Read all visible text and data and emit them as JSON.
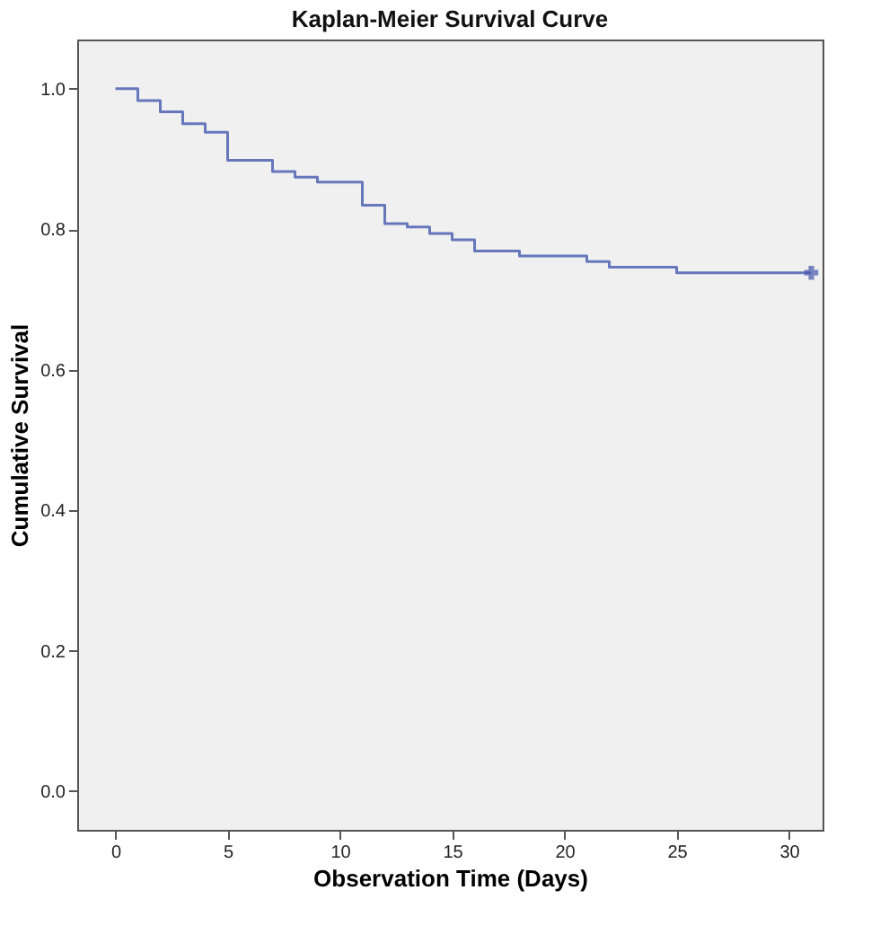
{
  "chart_data": {
    "type": "step",
    "title": "Kaplan-Meier Survival Curve",
    "xlabel": "Observation Time (Days)",
    "ylabel": "Cumulative Survival",
    "xlim": [
      -1.7,
      31.5
    ],
    "xticks": [
      0,
      5,
      10,
      15,
      20,
      25,
      30
    ],
    "ylim": [
      -0.055,
      1.07
    ],
    "yticks": [
      {
        "value": 0,
        "label": "0.0"
      },
      {
        "value": 0.2,
        "label": "0.2"
      },
      {
        "value": 0.4,
        "label": "0.4"
      },
      {
        "value": 0.6,
        "label": "0.6"
      },
      {
        "value": 0.8,
        "label": "0.8"
      },
      {
        "value": 1,
        "label": "1.0"
      }
    ],
    "grid": false,
    "line_style": "solid",
    "series": [
      {
        "color": "#6677bb",
        "x": [
          0,
          1,
          2,
          3,
          4,
          5,
          7,
          8,
          9,
          11,
          12,
          13,
          14,
          15,
          16,
          18,
          21,
          22,
          25,
          31
        ],
        "values": [
          1.0,
          0.983,
          0.967,
          0.95,
          0.938,
          0.898,
          0.882,
          0.874,
          0.867,
          0.834,
          0.808,
          0.803,
          0.794,
          0.785,
          0.769,
          0.762,
          0.754,
          0.746,
          0.738,
          0.738
        ]
      },
      {
        "type": "scatter",
        "color": "#4455aa",
        "marker": "cross",
        "x": [
          31
        ],
        "values": [
          0.738
        ]
      }
    ]
  }
}
